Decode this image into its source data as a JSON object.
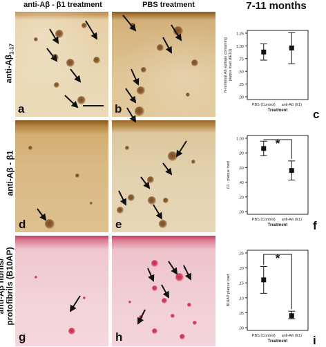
{
  "headers": {
    "col1": "anti-Aβ - β1 treatment",
    "col2": "PBS treatment",
    "col3": "7-11 months"
  },
  "row_labels": {
    "r1": "anti-Aβ",
    "r1_sub": "1-17",
    "r2": "anti-Aβ - β1",
    "r3_line1": "anti-Aβ fibrils/",
    "r3_line2": "protofibrils (B10AP)"
  },
  "panel_letters": [
    "a",
    "b",
    "c",
    "d",
    "e",
    "f",
    "g",
    "h",
    "i"
  ],
  "chart_data": [
    {
      "type": "scatter",
      "panel": "c",
      "categories": [
        "PBS (Control)",
        "anti-Aß (ß1)"
      ],
      "means": [
        0.88,
        0.96
      ],
      "ci_low": [
        0.72,
        0.65
      ],
      "ci_high": [
        1.04,
        1.26
      ],
      "ylim": [
        0,
        1.25
      ],
      "yticks": [
        "1,25",
        "1,00",
        ",75",
        ",50",
        ",25",
        ",00"
      ],
      "xlabel": "Treatment",
      "ylabel_line1": "N-terminal Aß epitope containing",
      "ylabel_line2": "plaque load (6E10)",
      "significance": ""
    },
    {
      "type": "scatter",
      "panel": "f",
      "categories": [
        "PBS (Control)",
        "anti-Aß (ß1)"
      ],
      "means": [
        0.86,
        0.56
      ],
      "ci_low": [
        0.76,
        0.43
      ],
      "ci_high": [
        0.96,
        0.69
      ],
      "ylim": [
        0,
        1.0
      ],
      "yticks": [
        "1,00",
        ",80",
        ",60",
        ",40",
        ",20",
        ",00"
      ],
      "xlabel": "Treatment",
      "ylabel_line1": "ß1 - plaque load",
      "ylabel_line2": "",
      "significance": "*"
    },
    {
      "type": "scatter",
      "panel": "i",
      "categories": [
        "PBS (Control)",
        "anti-Aß (ß1)"
      ],
      "means": [
        0.16,
        0.04
      ],
      "ci_low": [
        0.115,
        0.03
      ],
      "ci_high": [
        0.205,
        0.055
      ],
      "ylim": [
        0,
        0.25
      ],
      "yticks": [
        ",25",
        ",20",
        ",15",
        ",10",
        ",05",
        ",00"
      ],
      "xlabel": "Treatment",
      "ylabel_line1": "B10AP plaque load",
      "ylabel_line2": "",
      "significance": "*"
    }
  ],
  "colors": {
    "ihc_brown": "#c49a5f",
    "ihc_pink": "#f2d0d7",
    "plaque_brown": "#7a4a1c",
    "plaque_red": "#c8284c",
    "marker": "#111111"
  }
}
